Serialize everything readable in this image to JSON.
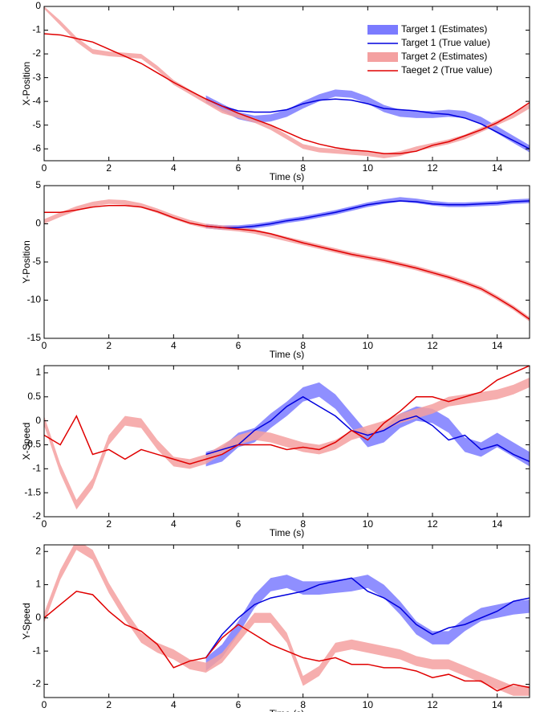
{
  "chart_data": [
    {
      "type": "line",
      "ylabel": "X-Position",
      "xlabel": "Time (s)",
      "legend": "upper right",
      "x": [
        0,
        0.5,
        1,
        1.5,
        2,
        2.5,
        3,
        3.5,
        4,
        4.5,
        5,
        5.5,
        6,
        6.5,
        7,
        7.5,
        8,
        8.5,
        9,
        9.5,
        10,
        10.5,
        11,
        11.5,
        12,
        12.5,
        13,
        13.5,
        14,
        14.5,
        15
      ],
      "xlim": [
        0,
        15
      ],
      "xticks": [
        0,
        2,
        4,
        6,
        8,
        10,
        12,
        14
      ],
      "ylim": [
        -6.5,
        0
      ],
      "yticks": [
        0,
        -1,
        -2,
        -3,
        -4,
        -5,
        -6
      ],
      "series": [
        {
          "name": "Target 1 (Estimates)",
          "kind": "band",
          "color": "#7b7bff",
          "low": [
            null,
            null,
            null,
            null,
            null,
            null,
            null,
            null,
            null,
            null,
            -4.05,
            -4.4,
            -4.75,
            -4.9,
            -4.85,
            -4.65,
            -4.3,
            -4.0,
            -3.8,
            -3.85,
            -4.1,
            -4.45,
            -4.65,
            -4.7,
            -4.7,
            -4.65,
            -4.7,
            -4.95,
            -5.35,
            -5.75,
            -6.15
          ],
          "high": [
            null,
            null,
            null,
            null,
            null,
            null,
            null,
            null,
            null,
            null,
            -3.75,
            -4.1,
            -4.45,
            -4.6,
            -4.55,
            -4.35,
            -4.0,
            -3.7,
            -3.5,
            -3.55,
            -3.8,
            -4.15,
            -4.35,
            -4.4,
            -4.4,
            -4.35,
            -4.4,
            -4.65,
            -5.05,
            -5.45,
            -5.85
          ]
        },
        {
          "name": "Target 1 (True value)",
          "kind": "line",
          "color": "#0000dd",
          "values": [
            null,
            null,
            null,
            null,
            null,
            null,
            null,
            null,
            null,
            null,
            -3.9,
            -4.2,
            -4.4,
            -4.45,
            -4.45,
            -4.35,
            -4.1,
            -3.95,
            -3.9,
            -3.95,
            -4.1,
            -4.3,
            -4.35,
            -4.4,
            -4.5,
            -4.55,
            -4.7,
            -4.95,
            -5.3,
            -5.65,
            -6.0
          ]
        },
        {
          "name": "Target 2 (Estimates)",
          "kind": "band",
          "color": "#f4a0a0",
          "low": [
            -0.1,
            -0.8,
            -1.5,
            -2.0,
            -2.1,
            -2.15,
            -2.2,
            -2.7,
            -3.3,
            -3.7,
            -4.1,
            -4.5,
            -4.7,
            -4.9,
            -5.2,
            -5.6,
            -6.0,
            -6.15,
            -6.2,
            -6.25,
            -6.3,
            -6.4,
            -6.3,
            -6.1,
            -5.95,
            -5.8,
            -5.6,
            -5.3,
            -5.0,
            -4.7,
            -4.3
          ],
          "high": [
            0,
            -0.6,
            -1.3,
            -1.8,
            -1.9,
            -1.95,
            -2.0,
            -2.5,
            -3.1,
            -3.5,
            -3.9,
            -4.3,
            -4.5,
            -4.7,
            -5.0,
            -5.4,
            -5.8,
            -5.95,
            -6.0,
            -6.05,
            -6.1,
            -6.2,
            -6.1,
            -5.9,
            -5.75,
            -5.6,
            -5.4,
            -5.1,
            -4.8,
            -4.5,
            -4.1
          ]
        },
        {
          "name": "Taeget 2 (True value)",
          "kind": "line",
          "color": "#e00000",
          "values": [
            -1.15,
            -1.2,
            -1.35,
            -1.5,
            -1.8,
            -2.1,
            -2.4,
            -2.8,
            -3.2,
            -3.55,
            -3.9,
            -4.2,
            -4.5,
            -4.75,
            -5.0,
            -5.3,
            -5.6,
            -5.8,
            -5.95,
            -6.05,
            -6.1,
            -6.2,
            -6.2,
            -6.1,
            -5.85,
            -5.7,
            -5.45,
            -5.2,
            -4.9,
            -4.5,
            -4.05
          ]
        }
      ]
    },
    {
      "type": "line",
      "ylabel": "Y-Position",
      "xlabel": "Time (s)",
      "x": [
        0,
        0.5,
        1,
        1.5,
        2,
        2.5,
        3,
        3.5,
        4,
        4.5,
        5,
        5.5,
        6,
        6.5,
        7,
        7.5,
        8,
        8.5,
        9,
        9.5,
        10,
        10.5,
        11,
        11.5,
        12,
        12.5,
        13,
        13.5,
        14,
        14.5,
        15
      ],
      "xlim": [
        0,
        15
      ],
      "xticks": [
        0,
        2,
        4,
        6,
        8,
        10,
        12,
        14
      ],
      "ylim": [
        -15,
        5
      ],
      "yticks": [
        5,
        0,
        -5,
        -10,
        -15
      ],
      "series": [
        {
          "name": "Target 1 (Estimates)",
          "kind": "band",
          "color": "#7b7bff",
          "low": [
            null,
            null,
            null,
            null,
            null,
            null,
            null,
            null,
            null,
            null,
            -0.6,
            -0.8,
            -0.8,
            -0.6,
            -0.3,
            0.1,
            0.4,
            0.8,
            1.2,
            1.7,
            2.2,
            2.6,
            2.9,
            2.7,
            2.4,
            2.2,
            2.2,
            2.3,
            2.4,
            2.6,
            2.7
          ],
          "high": [
            null,
            null,
            null,
            null,
            null,
            null,
            null,
            null,
            null,
            null,
            0,
            -0.2,
            -0.2,
            0,
            0.3,
            0.7,
            1.0,
            1.4,
            1.8,
            2.3,
            2.8,
            3.2,
            3.5,
            3.3,
            3.0,
            2.8,
            2.8,
            2.9,
            3.0,
            3.2,
            3.3
          ]
        },
        {
          "name": "Target 1 (True value)",
          "kind": "line",
          "color": "#0000dd",
          "values": [
            null,
            null,
            null,
            null,
            null,
            null,
            null,
            null,
            null,
            null,
            -0.3,
            -0.5,
            -0.5,
            -0.3,
            0.0,
            0.4,
            0.7,
            1.1,
            1.5,
            2.0,
            2.5,
            2.8,
            3.0,
            2.9,
            2.6,
            2.5,
            2.5,
            2.6,
            2.7,
            2.9,
            3.0
          ]
        },
        {
          "name": "Target 2 (Estimates)",
          "kind": "band",
          "color": "#f4a0a0",
          "low": [
            0,
            0.9,
            1.7,
            2.3,
            2.6,
            2.5,
            2.1,
            1.4,
            0.6,
            -0.1,
            -0.6,
            -0.8,
            -1.0,
            -1.3,
            -1.8,
            -2.3,
            -2.8,
            -3.3,
            -3.8,
            -4.3,
            -4.7,
            -5.1,
            -5.6,
            -6.1,
            -6.7,
            -7.3,
            -8.0,
            -8.8,
            -10.0,
            -11.3,
            -12.8
          ],
          "high": [
            0.6,
            1.5,
            2.3,
            2.9,
            3.2,
            3.1,
            2.7,
            2.0,
            1.2,
            0.5,
            0,
            -0.2,
            -0.4,
            -0.7,
            -1.2,
            -1.7,
            -2.2,
            -2.7,
            -3.2,
            -3.7,
            -4.1,
            -4.5,
            -5.0,
            -5.5,
            -6.1,
            -6.7,
            -7.4,
            -8.2,
            -9.4,
            -10.7,
            -12.2
          ]
        },
        {
          "name": "Taeget 2 (True value)",
          "kind": "line",
          "color": "#e00000",
          "values": [
            1.5,
            1.5,
            1.8,
            2.2,
            2.4,
            2.4,
            2.2,
            1.6,
            0.8,
            0.1,
            -0.3,
            -0.5,
            -0.7,
            -0.9,
            -1.3,
            -1.9,
            -2.5,
            -3.0,
            -3.5,
            -4.0,
            -4.4,
            -4.8,
            -5.3,
            -5.8,
            -6.4,
            -7.0,
            -7.7,
            -8.5,
            -9.7,
            -11.0,
            -12.5
          ]
        }
      ]
    },
    {
      "type": "line",
      "ylabel": "X-Speed",
      "xlabel": "Time (s)",
      "x": [
        0,
        0.5,
        1,
        1.5,
        2,
        2.5,
        3,
        3.5,
        4,
        4.5,
        5,
        5.5,
        6,
        6.5,
        7,
        7.5,
        8,
        8.5,
        9,
        9.5,
        10,
        10.5,
        11,
        11.5,
        12,
        12.5,
        13,
        13.5,
        14,
        14.5,
        15
      ],
      "xlim": [
        0,
        15
      ],
      "xticks": [
        0,
        2,
        4,
        6,
        8,
        10,
        12,
        14
      ],
      "ylim": [
        -2,
        1.15
      ],
      "yticks": [
        1,
        0.5,
        0,
        -0.5,
        -1,
        -1.5,
        -2
      ],
      "series": [
        {
          "name": "Target 1 (Estimates)",
          "kind": "band",
          "color": "#7b7bff",
          "low": [
            null,
            null,
            null,
            null,
            null,
            null,
            null,
            null,
            null,
            null,
            -0.95,
            -0.85,
            -0.55,
            -0.45,
            -0.15,
            0.1,
            0.4,
            0.5,
            0.25,
            -0.15,
            -0.55,
            -0.45,
            -0.15,
            0,
            -0.05,
            -0.25,
            -0.65,
            -0.75,
            -0.55,
            -0.75,
            -0.95
          ],
          "high": [
            null,
            null,
            null,
            null,
            null,
            null,
            null,
            null,
            null,
            null,
            -0.65,
            -0.55,
            -0.25,
            -0.15,
            0.15,
            0.4,
            0.7,
            0.8,
            0.55,
            0.15,
            -0.25,
            -0.15,
            0.15,
            0.3,
            0.25,
            0.05,
            -0.35,
            -0.45,
            -0.25,
            -0.45,
            -0.65
          ]
        },
        {
          "name": "Target 1 (True value)",
          "kind": "line",
          "color": "#0000dd",
          "values": [
            null,
            null,
            null,
            null,
            null,
            null,
            null,
            null,
            null,
            null,
            -0.7,
            -0.6,
            -0.5,
            -0.2,
            0.0,
            0.3,
            0.5,
            0.3,
            0.1,
            -0.2,
            -0.3,
            -0.2,
            0.0,
            0.1,
            -0.1,
            -0.4,
            -0.3,
            -0.6,
            -0.5,
            -0.7,
            -0.85
          ]
        },
        {
          "name": "Target 2 (Estimates)",
          "kind": "band",
          "color": "#f4a0a0",
          "low": [
            -0.1,
            -1.1,
            -1.85,
            -1.4,
            -0.5,
            -0.1,
            -0.15,
            -0.6,
            -0.95,
            -1.0,
            -0.9,
            -0.7,
            -0.5,
            -0.4,
            -0.45,
            -0.55,
            -0.65,
            -0.7,
            -0.6,
            -0.4,
            -0.3,
            -0.2,
            -0.05,
            0.05,
            0.15,
            0.3,
            0.35,
            0.4,
            0.45,
            0.55,
            0.7
          ],
          "high": [
            0.1,
            -0.9,
            -1.65,
            -1.2,
            -0.3,
            0.1,
            0.05,
            -0.4,
            -0.75,
            -0.8,
            -0.7,
            -0.5,
            -0.3,
            -0.2,
            -0.25,
            -0.35,
            -0.45,
            -0.5,
            -0.4,
            -0.2,
            -0.1,
            0,
            0.15,
            0.25,
            0.35,
            0.5,
            0.55,
            0.6,
            0.65,
            0.75,
            0.9
          ]
        },
        {
          "name": "Taeget 2 (True value)",
          "kind": "line",
          "color": "#e00000",
          "values": [
            -0.3,
            -0.5,
            0.1,
            -0.7,
            -0.6,
            -0.8,
            -0.6,
            -0.7,
            -0.8,
            -0.9,
            -0.8,
            -0.7,
            -0.5,
            -0.5,
            -0.5,
            -0.6,
            -0.55,
            -0.6,
            -0.45,
            -0.2,
            -0.4,
            -0.05,
            0.2,
            0.5,
            0.5,
            0.4,
            0.5,
            0.6,
            0.85,
            1.0,
            1.15
          ]
        }
      ]
    },
    {
      "type": "line",
      "ylabel": "Y-Speed",
      "xlabel": "Time (s)",
      "x": [
        0,
        0.5,
        1,
        1.5,
        2,
        2.5,
        3,
        3.5,
        4,
        4.5,
        5,
        5.5,
        6,
        6.5,
        7,
        7.5,
        8,
        8.5,
        9,
        9.5,
        10,
        10.5,
        11,
        11.5,
        12,
        12.5,
        13,
        13.5,
        14,
        14.5,
        15
      ],
      "xlim": [
        0,
        15
      ],
      "xticks": [
        0,
        2,
        4,
        6,
        8,
        10,
        12,
        14
      ],
      "ylim": [
        -2.4,
        2.2
      ],
      "yticks": [
        2,
        1,
        0,
        -1,
        -2
      ],
      "series": [
        {
          "name": "Target 1 (Estimates)",
          "kind": "band",
          "color": "#7b7bff",
          "low": [
            null,
            null,
            null,
            null,
            null,
            null,
            null,
            null,
            null,
            null,
            -1.6,
            -1.2,
            -0.5,
            0.3,
            0.8,
            0.9,
            0.7,
            0.7,
            0.75,
            0.8,
            0.9,
            0.6,
            0.1,
            -0.5,
            -0.8,
            -0.8,
            -0.4,
            -0.1,
            0,
            0.1,
            0.15
          ],
          "high": [
            null,
            null,
            null,
            null,
            null,
            null,
            null,
            null,
            null,
            null,
            -1.2,
            -0.8,
            -0.1,
            0.7,
            1.2,
            1.3,
            1.1,
            1.1,
            1.15,
            1.2,
            1.3,
            1.0,
            0.5,
            -0.1,
            -0.4,
            -0.4,
            0,
            0.3,
            0.4,
            0.5,
            0.55
          ]
        },
        {
          "name": "Target 1 (True value)",
          "kind": "line",
          "color": "#0000dd",
          "values": [
            null,
            null,
            null,
            null,
            null,
            null,
            null,
            null,
            null,
            null,
            -1.2,
            -0.5,
            0.0,
            0.4,
            0.6,
            0.7,
            0.8,
            1.0,
            1.1,
            1.2,
            0.8,
            0.6,
            0.3,
            -0.2,
            -0.5,
            -0.3,
            -0.2,
            0.0,
            0.2,
            0.5,
            0.6
          ]
        },
        {
          "name": "Target 2 (Estimates)",
          "kind": "band",
          "color": "#f4a0a0",
          "low": [
            -0.15,
            1.15,
            2.05,
            1.75,
            0.75,
            -0.05,
            -0.75,
            -1.05,
            -1.25,
            -1.55,
            -1.65,
            -1.35,
            -0.75,
            -0.15,
            -0.15,
            -0.75,
            -2.05,
            -1.75,
            -1.05,
            -0.95,
            -1.05,
            -1.15,
            -1.25,
            -1.45,
            -1.55,
            -1.55,
            -1.75,
            -1.95,
            -2.15,
            -2.35,
            -2.35
          ],
          "high": [
            0.15,
            1.45,
            2.35,
            2.05,
            1.05,
            0.25,
            -0.45,
            -0.75,
            -0.95,
            -1.25,
            -1.35,
            -1.05,
            -0.45,
            0.15,
            0.15,
            -0.45,
            -1.75,
            -1.45,
            -0.75,
            -0.65,
            -0.75,
            -0.85,
            -0.95,
            -1.15,
            -1.25,
            -1.25,
            -1.45,
            -1.65,
            -1.85,
            -2.05,
            -2.05
          ]
        },
        {
          "name": "Taeget 2 (True value)",
          "kind": "line",
          "color": "#e00000",
          "values": [
            0,
            0.4,
            0.8,
            0.7,
            0.2,
            -0.2,
            -0.4,
            -0.8,
            -1.5,
            -1.3,
            -1.2,
            -0.6,
            -0.2,
            -0.5,
            -0.8,
            -1.0,
            -1.2,
            -1.3,
            -1.2,
            -1.4,
            -1.4,
            -1.5,
            -1.5,
            -1.6,
            -1.8,
            -1.7,
            -1.9,
            -1.9,
            -2.2,
            -2.0,
            -2.1
          ]
        }
      ]
    }
  ]
}
